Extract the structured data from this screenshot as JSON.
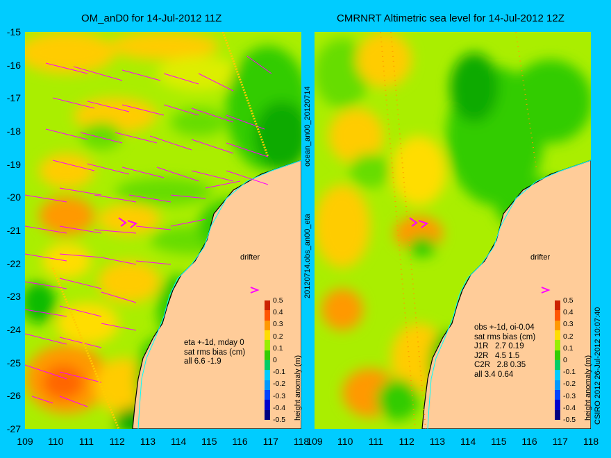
{
  "left_panel": {
    "title": "OM_anD0 for 14-Jul-2012 11Z",
    "stats_lines": [
      "eta +-1d, mday 0",
      "sat rms bias (cm)",
      "all 6.6 -1.9"
    ],
    "drifter_label": "drifter"
  },
  "right_panel": {
    "title": "CMRNRT Altimetric sea level  for 14-Jul-2012 12Z",
    "stats_lines": [
      "obs +-1d, oi-0.04",
      "sat rms bias (cm)",
      "J1R   2.7 0.19",
      "J2R   4.5 1.5",
      "C2R   2.8 0.35",
      "all 3.4 0.64"
    ],
    "drifter_label": "drifter"
  },
  "axes": {
    "y_ticks": [
      "-15",
      "-16",
      "-17",
      "-18",
      "-19",
      "-20",
      "-21",
      "-22",
      "-23",
      "-24",
      "-25",
      "-26",
      "-27"
    ],
    "x_ticks": [
      "109",
      "110",
      "111",
      "112",
      "113",
      "114",
      "115",
      "116",
      "117",
      "118"
    ],
    "lat_range": [
      -27,
      -15
    ],
    "lon_range": [
      109,
      118
    ]
  },
  "colorbar": {
    "title": "height anomaly (m)",
    "labels": [
      "0.5",
      "0.4",
      "0.3",
      "0.2",
      "0.1",
      "0",
      "-0.1",
      "-0.2",
      "-0.3",
      "-0.4",
      "-0.5"
    ],
    "range": [
      -0.5,
      0.5
    ]
  },
  "side_text": {
    "filename": "20120714.obs_an00_eta",
    "product": "ocean_an00_20120714",
    "credit": "CSIRO 2012   26-Jul-2012 10:07:40"
  },
  "colors": {
    "background": "#00ccff",
    "land": "#ffcc99",
    "arrow": "#ff00ff",
    "coast_line": "#00ffff",
    "green": "#33cc00",
    "yellow_green": "#aaee00",
    "yellow": "#ffdd00",
    "orange": "#ff9900"
  }
}
